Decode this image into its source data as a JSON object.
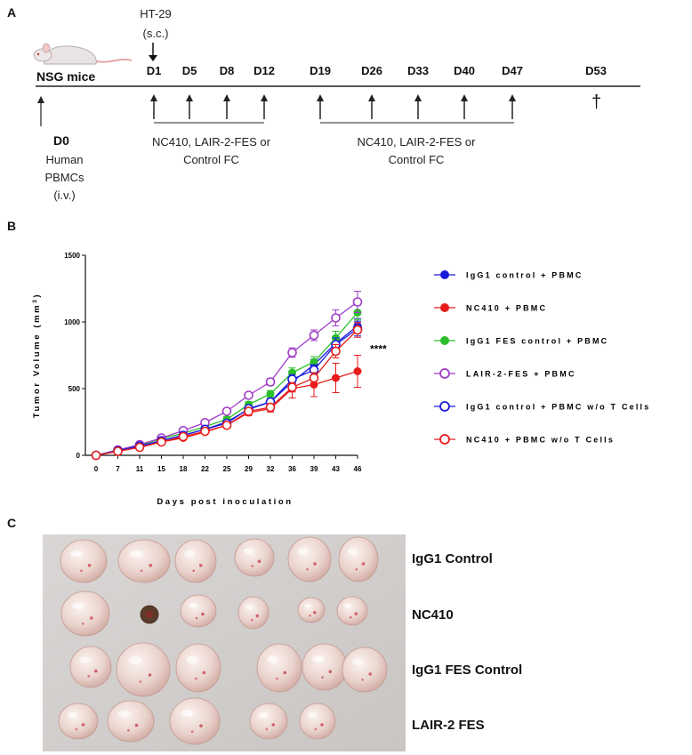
{
  "panels": {
    "a": "A",
    "b": "B",
    "c": "C"
  },
  "panel_a": {
    "mouse_label": "NSG mice",
    "inoculation_top": "HT-29",
    "inoculation_bottom": "(s.c.)",
    "day_labels": [
      "D1",
      "D5",
      "D8",
      "D12",
      "D19",
      "D26",
      "D33",
      "D40",
      "D47",
      "D53"
    ],
    "d0_label": "D0",
    "d0_desc": [
      "Human",
      "PBMCs",
      "(i.v.)"
    ],
    "treatment1": [
      "NC410, LAIR-2-FES or",
      "Control FC"
    ],
    "treatment2": [
      "NC410, LAIR-2-FES or",
      "Control FC"
    ],
    "end_mark": "†"
  },
  "chart_data": {
    "type": "line",
    "xlabel": "Days post inoculation",
    "ylabel": "Tumor Volume (mm3)",
    "x": [
      0,
      7,
      11,
      15,
      18,
      22,
      25,
      29,
      32,
      36,
      39,
      43,
      46
    ],
    "ylim": [
      0,
      1500
    ],
    "yticks": [
      0,
      500,
      1000,
      1500
    ],
    "significance": "****",
    "series": [
      {
        "name": "IgG1 control + PBMC",
        "color": "#1a1adb",
        "filled": true,
        "values": [
          0,
          35,
          65,
          110,
          150,
          195,
          250,
          345,
          400,
          550,
          680,
          840,
          970
        ],
        "errors": [
          0,
          5,
          8,
          10,
          12,
          15,
          18,
          22,
          25,
          35,
          40,
          50,
          55
        ]
      },
      {
        "name": "NC410 + PBMC",
        "color": "#e81c1c",
        "filled": true,
        "values": [
          0,
          30,
          60,
          100,
          130,
          175,
          225,
          320,
          350,
          500,
          530,
          580,
          630
        ],
        "errors": [
          0,
          5,
          8,
          10,
          12,
          15,
          18,
          22,
          25,
          70,
          90,
          110,
          120
        ]
      },
      {
        "name": "IgG1 FES control + PBMC",
        "color": "#2bbf2b",
        "filled": true,
        "values": [
          0,
          40,
          75,
          125,
          165,
          215,
          270,
          380,
          460,
          620,
          700,
          880,
          1070
        ],
        "errors": [
          0,
          5,
          8,
          10,
          12,
          15,
          18,
          22,
          25,
          35,
          40,
          50,
          55
        ]
      },
      {
        "name": "LAIR-2-FES + PBMC",
        "color": "#a03cc8",
        "filled": false,
        "values": [
          0,
          40,
          80,
          130,
          185,
          245,
          330,
          450,
          550,
          770,
          900,
          1030,
          1150
        ],
        "errors": [
          0,
          5,
          8,
          10,
          12,
          15,
          18,
          22,
          25,
          35,
          40,
          60,
          80
        ]
      },
      {
        "name": "IgG1 control + PBMC w/o T Cells",
        "color": "#1a1adb",
        "filled": false,
        "values": [
          0,
          35,
          70,
          110,
          150,
          195,
          240,
          350,
          400,
          570,
          640,
          830,
          950
        ],
        "errors": [
          0,
          5,
          8,
          10,
          12,
          15,
          18,
          22,
          25,
          35,
          40,
          50,
          55
        ]
      },
      {
        "name": "NC410 + PBMC w/o T Cells",
        "color": "#e81c1c",
        "filled": false,
        "values": [
          0,
          30,
          60,
          100,
          140,
          180,
          225,
          330,
          360,
          510,
          580,
          780,
          940
        ],
        "errors": [
          0,
          5,
          8,
          10,
          12,
          15,
          18,
          22,
          25,
          35,
          40,
          50,
          55
        ]
      }
    ]
  },
  "panel_c": {
    "labels": [
      "IgG1 Control",
      "NC410",
      "IgG1 FES Control",
      "LAIR-2 FES"
    ]
  }
}
